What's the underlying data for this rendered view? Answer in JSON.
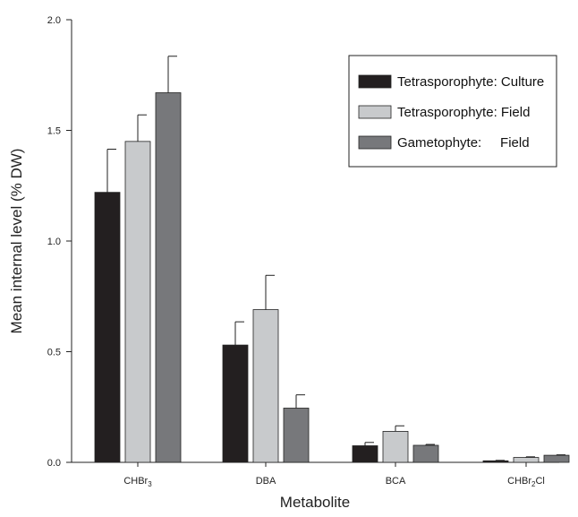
{
  "chart_data": {
    "type": "bar",
    "title": "",
    "xlabel": "Metabolite",
    "ylabel": "Mean internal level (% DW)",
    "ylim": [
      0,
      2.0
    ],
    "yticks": [
      "0.0",
      "0.5",
      "1.0",
      "1.5",
      "2.0"
    ],
    "categories": [
      {
        "label": "CHBr",
        "sub": "3",
        "suffix": ""
      },
      {
        "label": "DBA",
        "sub": "",
        "suffix": ""
      },
      {
        "label": "BCA",
        "sub": "",
        "suffix": ""
      },
      {
        "label": "CHBr",
        "sub": "2",
        "suffix": "Cl"
      }
    ],
    "series": [
      {
        "name": "Tetrasporophyte: Culture",
        "color": "#231f20",
        "values": [
          1.22,
          0.53,
          0.075,
          0.007
        ],
        "errors": [
          0.195,
          0.105,
          0.015,
          0.002
        ]
      },
      {
        "name": "Tetrasporophyte: Field",
        "color": "#c8cacc",
        "values": [
          1.45,
          0.69,
          0.14,
          0.022
        ],
        "errors": [
          0.12,
          0.155,
          0.025,
          0.003
        ]
      },
      {
        "name": "Gametophyte:     Field",
        "color": "#77787b",
        "values": [
          1.67,
          0.245,
          0.077,
          0.032
        ],
        "errors": [
          0.165,
          0.06,
          0.004,
          0.002
        ]
      }
    ],
    "legend_position": "top-right",
    "grid": false
  }
}
